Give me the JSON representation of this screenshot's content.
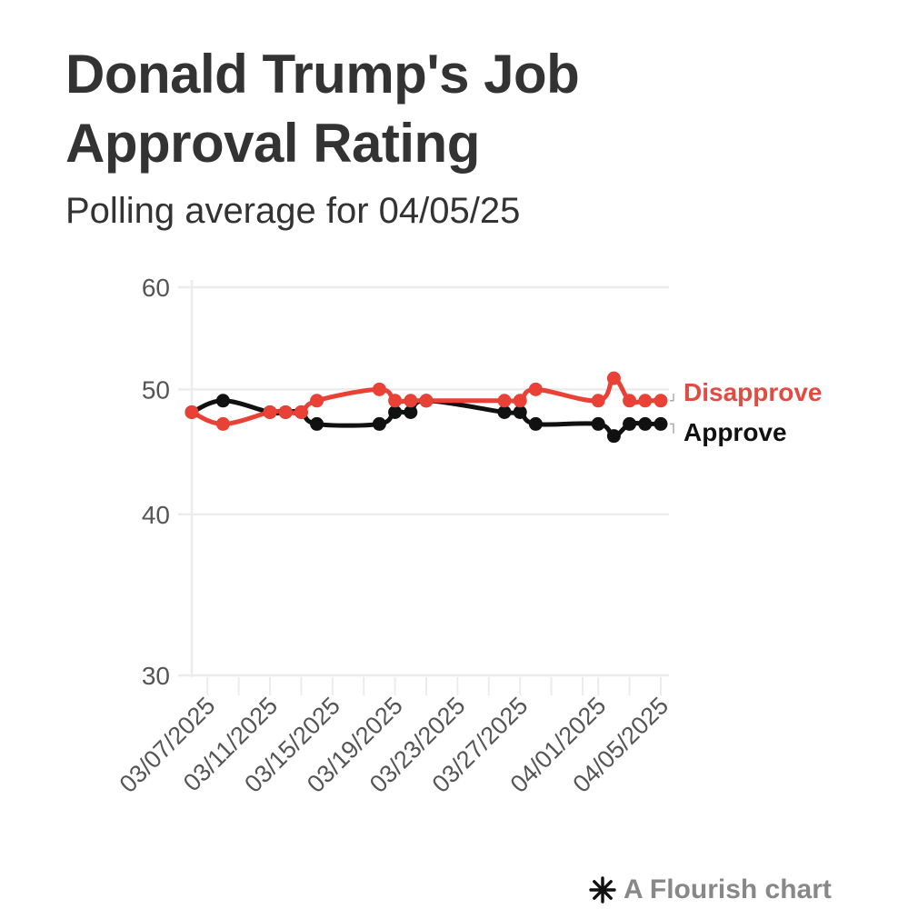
{
  "header": {
    "title": "Donald Trump's Job Approval Rating",
    "subtitle": "Polling average for 04/05/25"
  },
  "footer": {
    "label": "A Flourish chart",
    "icon": "flourish-asterisk-icon"
  },
  "colors": {
    "disapprove": "#ea4136",
    "approve": "#111111",
    "axis_text": "#555555",
    "grid": "#ececec"
  },
  "chart_data": {
    "type": "line",
    "title": "Donald Trump's Job Approval Rating",
    "subtitle": "Polling average for 04/05/25",
    "xlabel": "",
    "ylabel": "",
    "y_scale": "log",
    "ylim": [
      30,
      60
    ],
    "yticks": [
      30,
      40,
      50,
      60
    ],
    "grid": true,
    "x": [
      "2025-03-06",
      "2025-03-08",
      "2025-03-11",
      "2025-03-12",
      "2025-03-13",
      "2025-03-14",
      "2025-03-18",
      "2025-03-19",
      "2025-03-20",
      "2025-03-21",
      "2025-03-26",
      "2025-03-27",
      "2025-03-28",
      "2025-04-01",
      "2025-04-02",
      "2025-04-03",
      "2025-04-04",
      "2025-04-05"
    ],
    "xlim": [
      "2025-03-06",
      "2025-04-05"
    ],
    "xtick_labels": [
      "03/07/2025",
      "03/11/2025",
      "03/15/2025",
      "03/19/2025",
      "03/23/2025",
      "03/27/2025",
      "04/01/2025",
      "04/05/2025"
    ],
    "xtick_label_dates": [
      "2025-03-07",
      "2025-03-11",
      "2025-03-15",
      "2025-03-19",
      "2025-03-23",
      "2025-03-27",
      "2025-04-01",
      "2025-04-05"
    ],
    "xtick_minor_dates": [
      "2025-03-07",
      "2025-03-09",
      "2025-03-11",
      "2025-03-13",
      "2025-03-15",
      "2025-03-17",
      "2025-03-19",
      "2025-03-21",
      "2025-03-23",
      "2025-03-25",
      "2025-03-27",
      "2025-03-29",
      "2025-03-31",
      "2025-04-01",
      "2025-04-03",
      "2025-04-05"
    ],
    "series": [
      {
        "name": "Approve",
        "label": "Approve",
        "color": "#111111",
        "values": [
          48,
          49,
          48,
          48,
          48,
          47,
          47,
          48,
          48,
          49,
          48,
          48,
          47,
          47,
          46,
          47,
          47,
          47
        ]
      },
      {
        "name": "Disapprove",
        "label": "Disapprove",
        "color": "#ea4136",
        "values": [
          48,
          47,
          48,
          48,
          48,
          49,
          50,
          49,
          49,
          49,
          49,
          49,
          50,
          49,
          51,
          49,
          49,
          49
        ]
      }
    ],
    "legend": "direct-labels-right"
  }
}
